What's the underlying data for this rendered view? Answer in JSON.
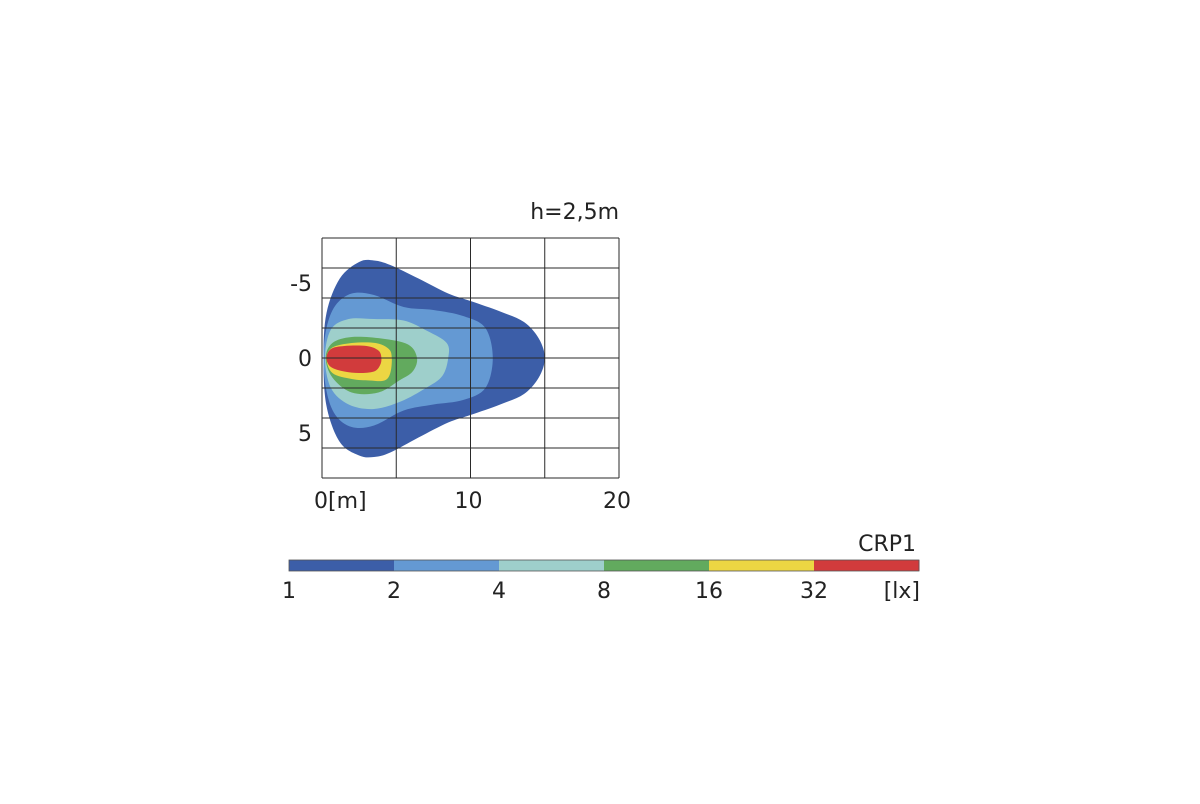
{
  "chart_data": {
    "type": "heatmap",
    "title": "h=2,5m",
    "xlabel": "",
    "ylabel": "",
    "x_unit_label": "[m]",
    "xlim": [
      0,
      20
    ],
    "ylim": [
      -8,
      8
    ],
    "x_ticks": [
      {
        "value": 0,
        "label": "0"
      },
      {
        "value": 10,
        "label": "10"
      },
      {
        "value": 20,
        "label": "20"
      }
    ],
    "y_ticks": [
      {
        "value": -5,
        "label": "-5"
      },
      {
        "value": 0,
        "label": "0"
      },
      {
        "value": 5,
        "label": "5"
      }
    ],
    "grid": true,
    "grid_x_values": [
      0,
      5,
      10,
      15,
      20
    ],
    "grid_y_values": [
      -8,
      -6,
      -4,
      -2,
      0,
      2,
      4,
      6,
      8
    ],
    "contours": [
      {
        "level_lx": 1,
        "color": "#3c5ea8",
        "points": [
          [
            0.1,
            0
          ],
          [
            0.3,
            -3
          ],
          [
            1.2,
            -5.3
          ],
          [
            2.5,
            -6.4
          ],
          [
            3.5,
            -6.5
          ],
          [
            4.6,
            -6.2
          ],
          [
            6.5,
            -5.3
          ],
          [
            8.5,
            -4.3
          ],
          [
            10,
            -3.8
          ],
          [
            12,
            -3.1
          ],
          [
            13.6,
            -2.4
          ],
          [
            14.6,
            -1.3
          ],
          [
            15,
            0
          ],
          [
            14.6,
            1.3
          ],
          [
            13.6,
            2.4
          ],
          [
            12,
            3.1
          ],
          [
            10,
            3.8
          ],
          [
            8.5,
            4.3
          ],
          [
            6.5,
            5.3
          ],
          [
            4.6,
            6.3
          ],
          [
            3.5,
            6.6
          ],
          [
            2.5,
            6.5
          ],
          [
            1.2,
            5.6
          ],
          [
            0.3,
            3.2
          ]
        ]
      },
      {
        "level_lx": 2,
        "color": "#6499d3",
        "points": [
          [
            0.1,
            0
          ],
          [
            0.3,
            -2
          ],
          [
            0.9,
            -3.5
          ],
          [
            2,
            -4.3
          ],
          [
            3.5,
            -4.2
          ],
          [
            5.5,
            -3.4
          ],
          [
            7.5,
            -3.2
          ],
          [
            9.5,
            -2.8
          ],
          [
            11,
            -2
          ],
          [
            11.5,
            0
          ],
          [
            11,
            2
          ],
          [
            9.5,
            2.8
          ],
          [
            7.5,
            3.1
          ],
          [
            5.5,
            3.5
          ],
          [
            3.5,
            4.5
          ],
          [
            2,
            4.6
          ],
          [
            0.9,
            3.8
          ],
          [
            0.3,
            2.2
          ]
        ]
      },
      {
        "level_lx": 4,
        "color": "#9ecfcb",
        "points": [
          [
            0.2,
            0
          ],
          [
            0.6,
            -1.9
          ],
          [
            1.8,
            -2.6
          ],
          [
            3.5,
            -2.6
          ],
          [
            5.5,
            -2.5
          ],
          [
            7.1,
            -1.8
          ],
          [
            8.4,
            -1
          ],
          [
            8.5,
            0
          ],
          [
            8.1,
            1.2
          ],
          [
            7,
            2
          ],
          [
            5.3,
            2.9
          ],
          [
            3.5,
            3.4
          ],
          [
            1.8,
            3.1
          ],
          [
            0.6,
            2
          ]
        ]
      },
      {
        "level_lx": 8,
        "color": "#62aa5e",
        "points": [
          [
            0.25,
            0
          ],
          [
            0.7,
            -1
          ],
          [
            2,
            -1.4
          ],
          [
            4,
            -1.3
          ],
          [
            5.8,
            -0.9
          ],
          [
            6.4,
            0
          ],
          [
            6.1,
            0.9
          ],
          [
            5.2,
            1.5
          ],
          [
            3.8,
            2.3
          ],
          [
            2,
            2.3
          ],
          [
            0.7,
            1.3
          ]
        ]
      },
      {
        "level_lx": 16,
        "color": "#ecd643",
        "points": [
          [
            0.3,
            0
          ],
          [
            0.7,
            -0.7
          ],
          [
            2,
            -1
          ],
          [
            3.6,
            -1
          ],
          [
            4.5,
            -0.6
          ],
          [
            4.7,
            0
          ],
          [
            4.6,
            1
          ],
          [
            4.2,
            1.5
          ],
          [
            3.2,
            1.5
          ],
          [
            2,
            1.4
          ],
          [
            0.7,
            1
          ]
        ]
      },
      {
        "level_lx": 32,
        "color": "#d13b3c",
        "points": [
          [
            0.3,
            0
          ],
          [
            0.6,
            -0.6
          ],
          [
            1.5,
            -0.8
          ],
          [
            3,
            -0.8
          ],
          [
            3.8,
            -0.5
          ],
          [
            4,
            0
          ],
          [
            3.9,
            0.5
          ],
          [
            3.5,
            0.9
          ],
          [
            2.5,
            1
          ],
          [
            1.5,
            0.9
          ],
          [
            0.6,
            0.6
          ]
        ]
      }
    ],
    "legend": {
      "title": "CRP1",
      "unit": "[lx]",
      "levels": [
        "1",
        "2",
        "4",
        "8",
        "16",
        "32"
      ],
      "colors": [
        "#3c5ea8",
        "#6499d3",
        "#9ecfcb",
        "#62aa5e",
        "#ecd643",
        "#d13b3c"
      ]
    }
  }
}
